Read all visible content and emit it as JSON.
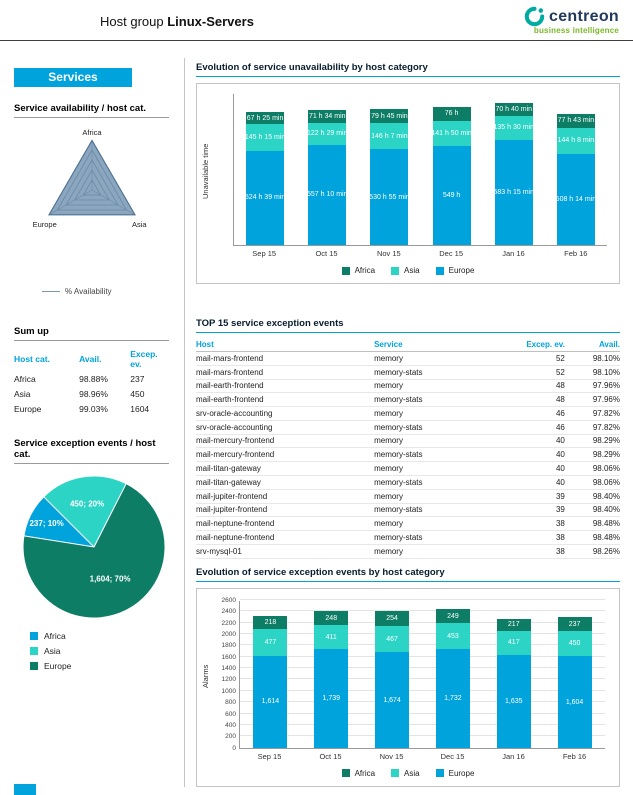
{
  "header": {
    "title_prefix": "Host group",
    "title_name": "Linux-Servers",
    "logo_text": "centreon",
    "logo_subtitle": "business intelligence"
  },
  "sidebar": {
    "services_label": "Services",
    "availability_heading": "Service availability / host cat.",
    "availability_legend": "% Availability",
    "sumup": {
      "heading": "Sum up",
      "columns": [
        "Host cat.",
        "Avail.",
        "Excep. ev."
      ],
      "rows": [
        {
          "cat": "Africa",
          "avail": "98.88%",
          "excep": "237"
        },
        {
          "cat": "Asia",
          "avail": "98.96%",
          "excep": "450"
        },
        {
          "cat": "Europe",
          "avail": "99.03%",
          "excep": "1604"
        }
      ]
    },
    "pie_heading": "Service exception events / host cat.",
    "pie_legend": [
      "Africa",
      "Asia",
      "Europe"
    ]
  },
  "main": {
    "chart1_title": "Evolution of service unavailability by host category",
    "top_table": {
      "title": "TOP 15 service exception events",
      "columns": [
        "Host",
        "Service",
        "Excep. ev.",
        "Avail."
      ],
      "rows": [
        [
          "mail-mars-frontend",
          "memory",
          "52",
          "98.10%"
        ],
        [
          "mail-mars-frontend",
          "memory-stats",
          "52",
          "98.10%"
        ],
        [
          "mail-earth-frontend",
          "memory",
          "48",
          "97.96%"
        ],
        [
          "mail-earth-frontend",
          "memory-stats",
          "48",
          "97.96%"
        ],
        [
          "srv-oracle-accounting",
          "memory",
          "46",
          "97.82%"
        ],
        [
          "srv-oracle-accounting",
          "memory-stats",
          "46",
          "97.82%"
        ],
        [
          "mail-mercury-frontend",
          "memory",
          "40",
          "98.29%"
        ],
        [
          "mail-mercury-frontend",
          "memory-stats",
          "40",
          "98.29%"
        ],
        [
          "mail-titan-gateway",
          "memory",
          "40",
          "98.06%"
        ],
        [
          "mail-titan-gateway",
          "memory-stats",
          "40",
          "98.06%"
        ],
        [
          "mail-jupiter-frontend",
          "memory",
          "39",
          "98.40%"
        ],
        [
          "mail-jupiter-frontend",
          "memory-stats",
          "39",
          "98.40%"
        ],
        [
          "mail-neptune-frontend",
          "memory",
          "38",
          "98.48%"
        ],
        [
          "mail-neptune-frontend",
          "memory-stats",
          "38",
          "98.48%"
        ],
        [
          "srv-mysql-01",
          "memory",
          "38",
          "98.26%"
        ]
      ]
    },
    "chart2_title": "Evolution of service exception events by host category"
  },
  "colors": {
    "accent_blue": "#00a3db",
    "africa": "#0e7d66",
    "asia": "#2bd4c4",
    "europe": "#00a3db",
    "logo_navy": "#20395c",
    "logo_green": "#79b829",
    "logo_teal": "#00aba2"
  },
  "chart_data": [
    {
      "id": "unavailability_by_category",
      "type": "bar",
      "stacked": true,
      "title": "Evolution of service unavailability by host category",
      "ylabel": "Unavailable time",
      "unit": "hours",
      "categories": [
        "Sep 15",
        "Oct 15",
        "Nov 15",
        "Dec 15",
        "Jan 16",
        "Feb 16"
      ],
      "series": [
        {
          "name": "Europe",
          "color": "#00a3db",
          "values": [
            524.65,
            557.17,
            530.92,
            549.0,
            583.25,
            508.23
          ],
          "labels": [
            "524 h 39 min",
            "557 h 10 min",
            "530 h 55 min",
            "549 h",
            "583 h 15 min",
            "508 h 14 min"
          ]
        },
        {
          "name": "Asia",
          "color": "#2bd4c4",
          "values": [
            145.25,
            122.48,
            146.12,
            141.83,
            135.5,
            144.13
          ],
          "labels": [
            "145 h 15 min",
            "122 h 29 min",
            "146 h 7 min",
            "141 h 50 min",
            "135 h 30 min",
            "144 h 8 min"
          ]
        },
        {
          "name": "Africa",
          "color": "#0e7d66",
          "values": [
            67.42,
            71.57,
            79.75,
            76.0,
            70.67,
            77.72
          ],
          "labels": [
            "67 h 25 min",
            "71 h 34 min",
            "79 h 45 min",
            "76 h",
            "70 h 40 min",
            "77 h 43 min"
          ]
        }
      ],
      "legend": [
        "Africa",
        "Asia",
        "Europe"
      ],
      "legend_position": "bottom"
    },
    {
      "id": "availability_radar",
      "type": "radar",
      "title": "Service availability / host cat.",
      "axes": [
        "Africa",
        "Asia",
        "Europe"
      ],
      "series": [
        {
          "name": "% Availability",
          "values": [
            98.88,
            98.96,
            99.03
          ]
        }
      ],
      "range": [
        0,
        100
      ]
    },
    {
      "id": "exception_events_pie",
      "type": "pie",
      "title": "Service exception events / host cat.",
      "start_angle": -81,
      "slices": [
        {
          "name": "Africa",
          "value": 237,
          "pct": 10,
          "label": "237; 10%",
          "color": "#00a3db"
        },
        {
          "name": "Asia",
          "value": 450,
          "pct": 20,
          "label": "450; 20%",
          "color": "#2bd4c4"
        },
        {
          "name": "Europe",
          "value": 1604,
          "pct": 70,
          "label": "1,604; 70%",
          "color": "#0e7d66"
        }
      ]
    },
    {
      "id": "exceptions_by_category",
      "type": "bar",
      "stacked": true,
      "title": "Evolution of service exception events by host category",
      "ylabel": "Alarms",
      "categories": [
        "Sep 15",
        "Oct 15",
        "Nov 15",
        "Dec 15",
        "Jan 16",
        "Feb 16"
      ],
      "ylim": [
        0,
        2600
      ],
      "ytick_step": 200,
      "series": [
        {
          "name": "Europe",
          "color": "#00a3db",
          "values": [
            1614,
            1739,
            1674,
            1732,
            1635,
            1604
          ],
          "labels": [
            "1,614",
            "1,739",
            "1,674",
            "1,732",
            "1,635",
            "1,604"
          ]
        },
        {
          "name": "Asia",
          "color": "#2bd4c4",
          "values": [
            477,
            411,
            467,
            453,
            417,
            450
          ],
          "labels": [
            "477",
            "411",
            "467",
            "453",
            "417",
            "450"
          ]
        },
        {
          "name": "Africa",
          "color": "#0e7d66",
          "values": [
            218,
            248,
            254,
            249,
            217,
            237
          ],
          "labels": [
            "218",
            "248",
            "254",
            "249",
            "217",
            "237"
          ]
        }
      ],
      "legend": [
        "Africa",
        "Asia",
        "Europe"
      ],
      "legend_position": "bottom"
    }
  ]
}
